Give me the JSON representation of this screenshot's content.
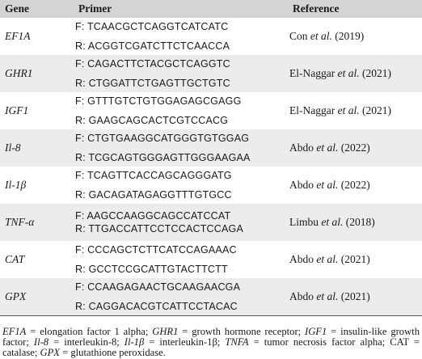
{
  "headers": {
    "gene": "Gene",
    "primer": "Primer",
    "reference": "Reference"
  },
  "rows": [
    {
      "gene": "EF1A",
      "forward": "F: TCAACGCTCAGGTCATCATC",
      "reverse": "R: ACGGTCGATCTTCTCAACCA",
      "ref_author": "Con",
      "ref_etal": "et al.",
      "ref_year": "(2019)"
    },
    {
      "gene": "GHR1",
      "forward": "F: CAGACTTCTACGCTCAGGTC",
      "reverse": "R: CTGGATTCTGAGTTGCTGTC",
      "ref_author": "El-Naggar",
      "ref_etal": "et al.",
      "ref_year": "(2021)"
    },
    {
      "gene": "IGF1",
      "forward": "F: GTTTGTCTGTGGAGAGCGAGG",
      "reverse": "R: GAAGCAGCACTCGTCCACG",
      "ref_author": "El-Naggar",
      "ref_etal": "et al.",
      "ref_year": "(2021)"
    },
    {
      "gene": "Il-8",
      "forward": "F: CTGTGAAGGCATGGGTGTGGAG",
      "reverse": "R: TCGCAGTGGGAGTTGGGAAGAA",
      "ref_author": "Abdo",
      "ref_etal": "et al.",
      "ref_year": "(2022)"
    },
    {
      "gene": "Il-1β",
      "forward": "F: TCAGTTCACCAGCAGGGATG",
      "reverse": "R: GACAGATAGAGGTTTGTGCC",
      "ref_author": "Abdo",
      "ref_etal": "et al.",
      "ref_year": "(2022)"
    },
    {
      "gene": "TNF-α",
      "forward": "F: AAGCCAAGGCAGCCATCCAT",
      "reverse": "R: TTGACCATTCCTCCACTCCAGA",
      "ref_author": "Limbu",
      "ref_etal": "et al.",
      "ref_year": "(2018)"
    },
    {
      "gene": "CAT",
      "forward": "F: CCCAGCTCTTCATCCAGAAAC",
      "reverse": "R: GCCTCCGCATTGTACTTCTT",
      "ref_author": "Abdo",
      "ref_etal": "et al.",
      "ref_year": "(2021)"
    },
    {
      "gene": "GPX",
      "forward": "F: CCAAGAGAACTGCAAGAACGA",
      "reverse": "R: CAGGACACGTCATTCCTACAC",
      "ref_author": "Abdo",
      "ref_etal": "et al.",
      "ref_year": "(2021)"
    }
  ],
  "footnote": [
    {
      "t": "EF1A",
      "i": true
    },
    {
      "t": " = elongation factor 1 alpha; "
    },
    {
      "t": "GHR1",
      "i": true
    },
    {
      "t": " = growth hormone receptor; "
    },
    {
      "t": "IGF1",
      "i": true
    },
    {
      "t": " = insulin-like growth factor; "
    },
    {
      "t": "Il-8",
      "i": true
    },
    {
      "t": " = interleukin-8; "
    },
    {
      "t": "Il-1β",
      "i": true
    },
    {
      "t": " = interleukin-1β; "
    },
    {
      "t": "TNFA",
      "i": true
    },
    {
      "t": " = tumor necrosis factor alpha; CAT = catalase; "
    },
    {
      "t": "GPX",
      "i": true
    },
    {
      "t": " = glutathione peroxidase."
    }
  ]
}
